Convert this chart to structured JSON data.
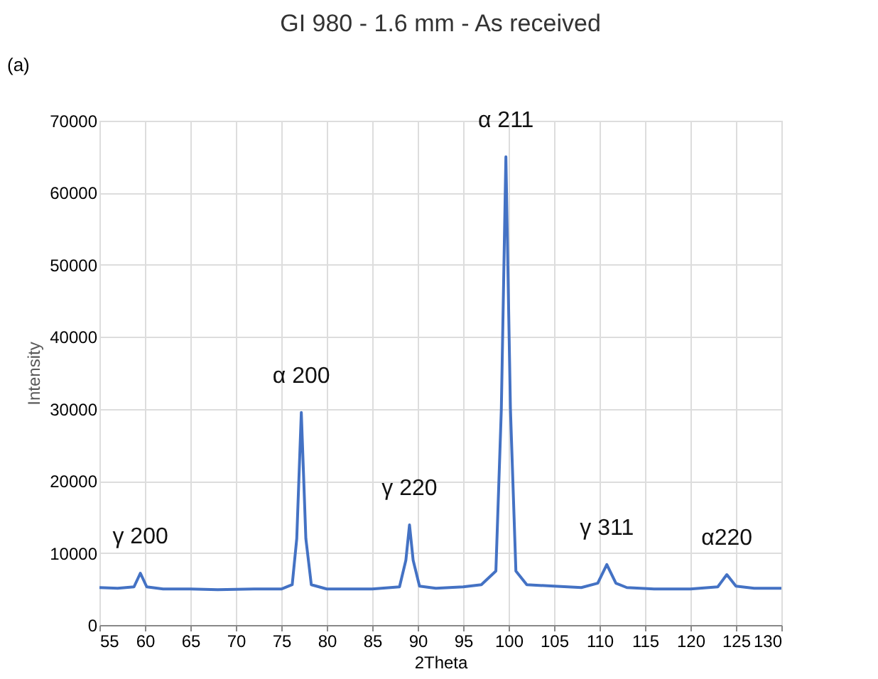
{
  "chart_data": {
    "type": "line",
    "title": "GI 980 - 1.6 mm - As received",
    "xlabel": "2Theta",
    "ylabel": "Intensity",
    "x": [
      55,
      57,
      58.8,
      59.5,
      60.2,
      62,
      65,
      68,
      72,
      75,
      76.2,
      76.7,
      77.2,
      77.7,
      78.3,
      80,
      85,
      88,
      88.7,
      89.1,
      89.5,
      90.2,
      92,
      95,
      97,
      98.6,
      99.2,
      99.7,
      100.2,
      100.8,
      102,
      105,
      108,
      109.8,
      110.8,
      111.8,
      113,
      116,
      120,
      123,
      124,
      125,
      127,
      130
    ],
    "series": [
      {
        "color": "#4472c4",
        "values": [
          5200,
          5100,
          5300,
          7200,
          5300,
          5000,
          5000,
          4900,
          5000,
          5000,
          5600,
          12000,
          29500,
          12000,
          5600,
          5000,
          5000,
          5300,
          9000,
          13900,
          9000,
          5400,
          5100,
          5300,
          5600,
          7500,
          30000,
          65000,
          30000,
          7500,
          5600,
          5400,
          5200,
          5800,
          8400,
          5800,
          5200,
          5000,
          5000,
          5300,
          7000,
          5400,
          5100,
          5100
        ]
      }
    ],
    "xlim": [
      55,
      130
    ],
    "xticks": [
      55,
      60,
      65,
      70,
      75,
      80,
      85,
      90,
      95,
      100,
      105,
      110,
      115,
      120,
      125,
      130
    ],
    "ylim": [
      0,
      70000
    ],
    "yticks": [
      0,
      10000,
      20000,
      30000,
      40000,
      50000,
      60000,
      70000
    ],
    "grid": true,
    "marker": "none",
    "line_style": "solid",
    "annotations": [
      "(a)",
      {
        "text": "γ 200",
        "x": 59.5,
        "y": 7200
      },
      {
        "text": "α 200",
        "x": 77.2,
        "y": 29500
      },
      {
        "text": "γ 220",
        "x": 89.1,
        "y": 13900
      },
      {
        "text": "α 211",
        "x": 99.7,
        "y": 65000
      },
      {
        "text": "γ 311",
        "x": 110.8,
        "y": 8400
      },
      {
        "text": "α220",
        "x": 124,
        "y": 7000
      }
    ]
  }
}
